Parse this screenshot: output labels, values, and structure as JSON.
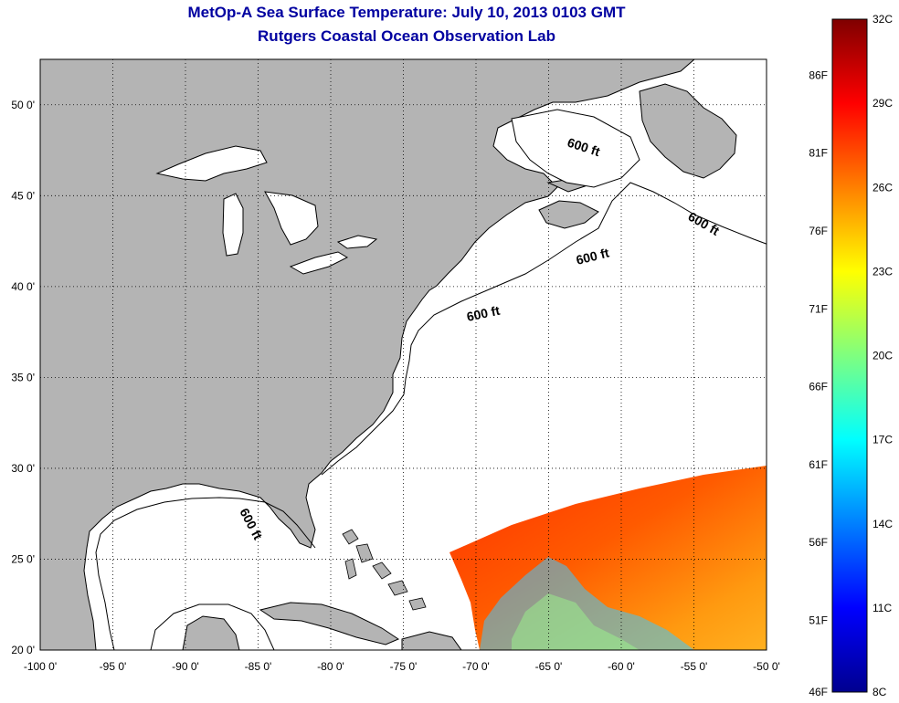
{
  "title": "MetOp-A Sea Surface Temperature:  July 10, 2013 0103 GMT",
  "subtitle": "Rutgers Coastal Ocean Observation Lab",
  "map": {
    "lon_range": [
      -100,
      -50
    ],
    "lat_range": [
      20,
      52.5
    ],
    "lon_ticks": [
      -100,
      -95,
      -90,
      -85,
      -80,
      -75,
      -70,
      -65,
      -60,
      -55,
      -50
    ],
    "lon_labels": [
      "-100 0'",
      "-95 0'",
      "-90 0'",
      "-85 0'",
      "-80 0'",
      "-75 0'",
      "-70 0'",
      "-65 0'",
      "-60 0'",
      "-55 0'",
      "-50 0'"
    ],
    "lat_ticks": [
      20,
      25,
      30,
      35,
      40,
      45,
      50
    ],
    "lat_labels": [
      "20 0'",
      "25 0'",
      "30 0'",
      "35 0'",
      "40 0'",
      "45 0'",
      "50 0'"
    ],
    "land_color": "#b4b4b4",
    "water_color": "#ffffff",
    "isobath_labels": [
      "600 ft",
      "600 ft",
      "600 ft",
      "600 ft",
      "600 ft"
    ]
  },
  "colorbar": {
    "celsius_range": [
      8,
      32
    ],
    "celsius_labels": [
      "32C",
      "29C",
      "26C",
      "23C",
      "20C",
      "17C",
      "14C",
      "11C",
      "8C"
    ],
    "fahrenheit_labels": [
      "86F",
      "81F",
      "76F",
      "71F",
      "66F",
      "61F",
      "56F",
      "51F",
      "46F"
    ],
    "colors": [
      "#7f0000",
      "#ff0000",
      "#ff7f00",
      "#ffff00",
      "#7fff7f",
      "#00ffff",
      "#007fff",
      "#0000ff",
      "#00008f"
    ]
  }
}
